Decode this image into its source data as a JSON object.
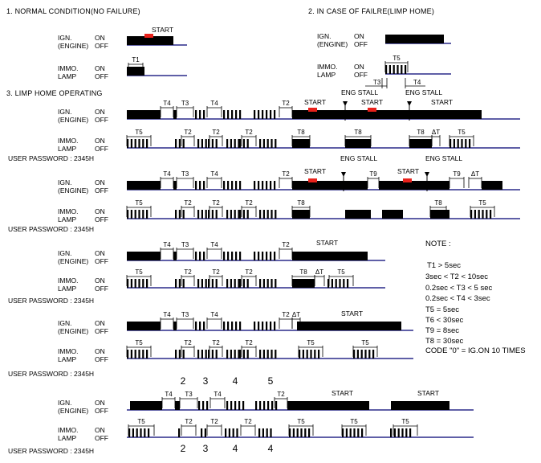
{
  "sections": {
    "normal": "1. NORMAL CONDITION(NO FAILURE)",
    "limp_home": "2. IN CASE OF FAILRE(LIMP HOME)",
    "limp_operating": "3. LIMP HOME OPERATING"
  },
  "labels": {
    "ign": "IGN.",
    "engine": "(ENGINE)",
    "immo": "IMMO.",
    "lamp": "LAMP",
    "on": "ON",
    "off": "OFF",
    "start": "START",
    "eng_stall": "ENG STALL",
    "user_password": "USER PASSWORD : 2345H"
  },
  "timing_labels": {
    "t1": "T1",
    "t2": "T2",
    "t3": "T3",
    "t4": "T4",
    "t5": "T5",
    "t8": "T8",
    "t9": "T9",
    "dt": "ΔT"
  },
  "digits": [
    "2",
    "3",
    "4",
    "5",
    "2",
    "3",
    "4",
    "4"
  ],
  "note": {
    "title": "NOTE :",
    "lines": [
      "T1 > 5sec",
      "3sec < T2 < 10sec",
      "0.2sec < T3 < 5 sec",
      "0.2sec < T4 < 3sec",
      "T5 = 5sec",
      "T6 < 30sec",
      "T9 = 8sec",
      "T8 = 30sec",
      "CODE \"0\" = IG.ON 10 TIMES"
    ]
  },
  "colors": {
    "signal": "#000000",
    "baseline": "#2a2a8a",
    "start_marker": "#e8211b",
    "digit": "#2a2a8a"
  }
}
